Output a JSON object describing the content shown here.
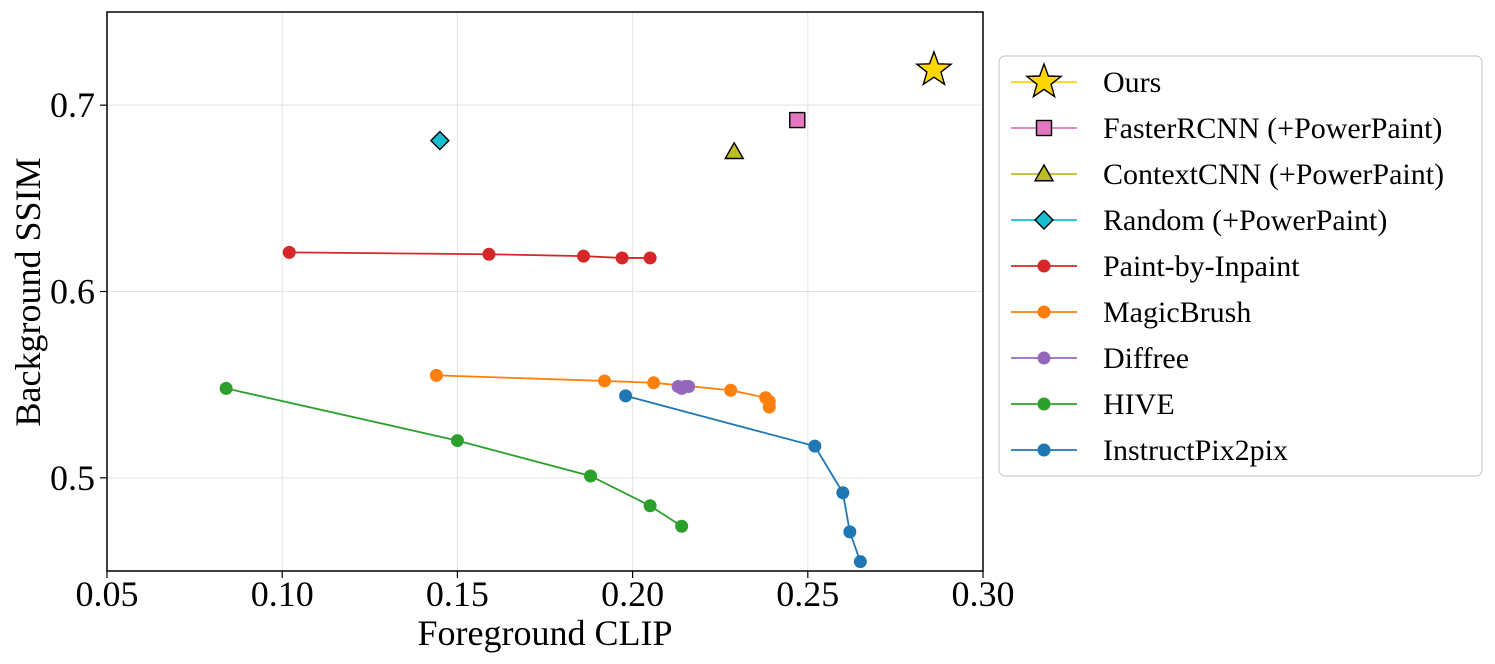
{
  "chart_data": {
    "type": "line",
    "title": "",
    "xlabel": "Foreground CLIP",
    "ylabel": "Background SSIM",
    "xlim": [
      0.05,
      0.3
    ],
    "ylim": [
      0.45,
      0.75
    ],
    "xticks": [
      0.05,
      0.1,
      0.15,
      0.2,
      0.25,
      0.3
    ],
    "xtick_labels": [
      "0.05",
      "0.10",
      "0.15",
      "0.20",
      "0.25",
      "0.30"
    ],
    "yticks": [
      0.5,
      0.6,
      0.7
    ],
    "ytick_labels": [
      "0.5",
      "0.6",
      "0.7"
    ],
    "grid": true,
    "legend_position": "right, outside plot",
    "series": [
      {
        "name": "Ours",
        "color": "#ffd700",
        "marker": "star",
        "points": [
          [
            0.286,
            0.719
          ]
        ]
      },
      {
        "name": "FasterRCNN (+PowerPaint)",
        "color": "#e377c2",
        "marker": "square",
        "points": [
          [
            0.247,
            0.692
          ]
        ]
      },
      {
        "name": "ContextCNN (+PowerPaint)",
        "color": "#bcbd22",
        "marker": "triangle",
        "points": [
          [
            0.229,
            0.675
          ]
        ]
      },
      {
        "name": "Random (+PowerPaint)",
        "color": "#17becf",
        "marker": "diamond",
        "points": [
          [
            0.145,
            0.681
          ]
        ]
      },
      {
        "name": "Paint-by-Inpaint",
        "color": "#d62728",
        "marker": "circle",
        "points": [
          [
            0.102,
            0.621
          ],
          [
            0.159,
            0.62
          ],
          [
            0.186,
            0.619
          ],
          [
            0.197,
            0.618
          ],
          [
            0.205,
            0.618
          ]
        ]
      },
      {
        "name": "MagicBrush",
        "color": "#ff7f0e",
        "marker": "circle",
        "points": [
          [
            0.144,
            0.555
          ],
          [
            0.192,
            0.552
          ],
          [
            0.206,
            0.551
          ],
          [
            0.228,
            0.547
          ],
          [
            0.238,
            0.543
          ],
          [
            0.239,
            0.541
          ],
          [
            0.239,
            0.538
          ]
        ]
      },
      {
        "name": "Diffree",
        "color": "#9467bd",
        "marker": "circle",
        "points": [
          [
            0.213,
            0.549
          ],
          [
            0.214,
            0.548
          ],
          [
            0.215,
            0.549
          ],
          [
            0.216,
            0.549
          ]
        ]
      },
      {
        "name": "HIVE",
        "color": "#2ca02c",
        "marker": "circle",
        "points": [
          [
            0.084,
            0.548
          ],
          [
            0.15,
            0.52
          ],
          [
            0.188,
            0.501
          ],
          [
            0.205,
            0.485
          ],
          [
            0.214,
            0.474
          ]
        ]
      },
      {
        "name": "InstructPix2pix",
        "color": "#1f77b4",
        "marker": "circle",
        "points": [
          [
            0.198,
            0.544
          ],
          [
            0.252,
            0.517
          ],
          [
            0.26,
            0.492
          ],
          [
            0.262,
            0.471
          ],
          [
            0.265,
            0.455
          ]
        ]
      }
    ]
  }
}
